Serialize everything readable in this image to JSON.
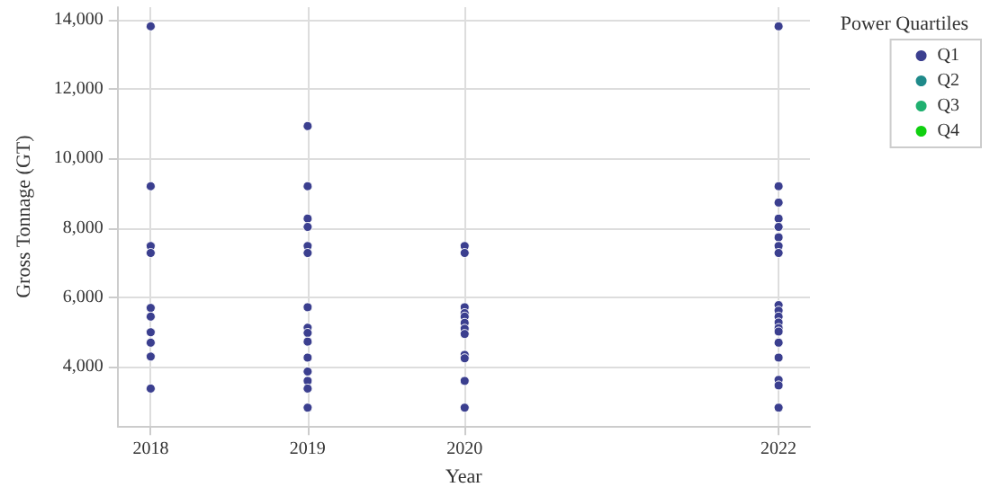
{
  "chart_data": {
    "type": "scatter",
    "xlabel": "Year",
    "ylabel": "Gross Tonnage (GT)",
    "legend_title": "Power Quartiles",
    "xlim": [
      2017.79,
      2022.2
    ],
    "xticks": [
      2018,
      2019,
      2020,
      2022
    ],
    "ylim": [
      2300,
      14350
    ],
    "yticks": [
      {
        "value": 4000,
        "label": "4,000"
      },
      {
        "value": 6000,
        "label": "6,000"
      },
      {
        "value": 8000,
        "label": "8,000"
      },
      {
        "value": 10000,
        "label": "10,000"
      },
      {
        "value": 12000,
        "label": "12,000"
      },
      {
        "value": 14000,
        "label": "14,000"
      }
    ],
    "grid": true,
    "legend": "top right",
    "marker": "circle",
    "series": [
      {
        "name": "Q1",
        "color": "#3b3f8f",
        "x": [
          2018,
          2018,
          2018,
          2018,
          2018,
          2018,
          2018,
          2018,
          2018,
          2018,
          2019,
          2019,
          2019,
          2019,
          2019,
          2019,
          2019,
          2019,
          2019,
          2019,
          2019,
          2019,
          2019,
          2019,
          2019,
          2020,
          2020,
          2020,
          2020,
          2020,
          2020,
          2020,
          2020,
          2020,
          2020,
          2020,
          2020,
          2022,
          2022,
          2022,
          2022,
          2022,
          2022,
          2022,
          2022,
          2022,
          2022,
          2022,
          2022,
          2022,
          2022,
          2022,
          2022,
          2022,
          2022,
          2022
        ],
        "values": [
          13800,
          9200,
          7480,
          7280,
          5700,
          5450,
          5000,
          4700,
          4300,
          3380,
          10930,
          9200,
          8270,
          8030,
          7480,
          7280,
          5720,
          5130,
          4980,
          4730,
          4270,
          3870,
          3600,
          3380,
          2830,
          7480,
          7280,
          5720,
          5550,
          5450,
          5270,
          5100,
          4950,
          4350,
          4250,
          3600,
          2830,
          13800,
          9200,
          8730,
          8270,
          8030,
          7730,
          7480,
          7280,
          5780,
          5620,
          5450,
          5280,
          5120,
          5020,
          4700,
          4270,
          3630,
          3470,
          2830
        ]
      },
      {
        "name": "Q2",
        "color": "#1f8a8a"
      },
      {
        "name": "Q3",
        "color": "#20b070"
      },
      {
        "name": "Q4",
        "color": "#10d010"
      }
    ]
  }
}
